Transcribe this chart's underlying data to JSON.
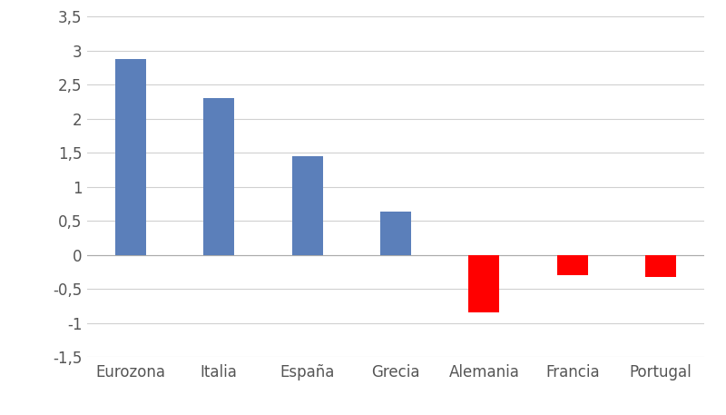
{
  "categories": [
    "Eurozona",
    "Italia",
    "España",
    "Grecia",
    "Alemania",
    "Francia",
    "Portugal"
  ],
  "values": [
    2.87,
    2.3,
    1.45,
    0.63,
    -0.85,
    -0.3,
    -0.32
  ],
  "bar_colors": [
    "#5b7fba",
    "#5b7fba",
    "#5b7fba",
    "#5b7fba",
    "#ff0000",
    "#ff0000",
    "#ff0000"
  ],
  "ylim": [
    -1.5,
    3.5
  ],
  "yticks": [
    -1.5,
    -1.0,
    -0.5,
    0,
    0.5,
    1.0,
    1.5,
    2.0,
    2.5,
    3.0,
    3.5
  ],
  "ytick_labels": [
    "-1,5",
    "-1",
    "-0,5",
    "0",
    "0,5",
    "1",
    "1,5",
    "2",
    "2,5",
    "3",
    "3,5"
  ],
  "background_color": "#ffffff",
  "grid_color": "#d0d0d0",
  "bar_width": 0.35,
  "tick_fontsize": 12,
  "label_fontsize": 12
}
